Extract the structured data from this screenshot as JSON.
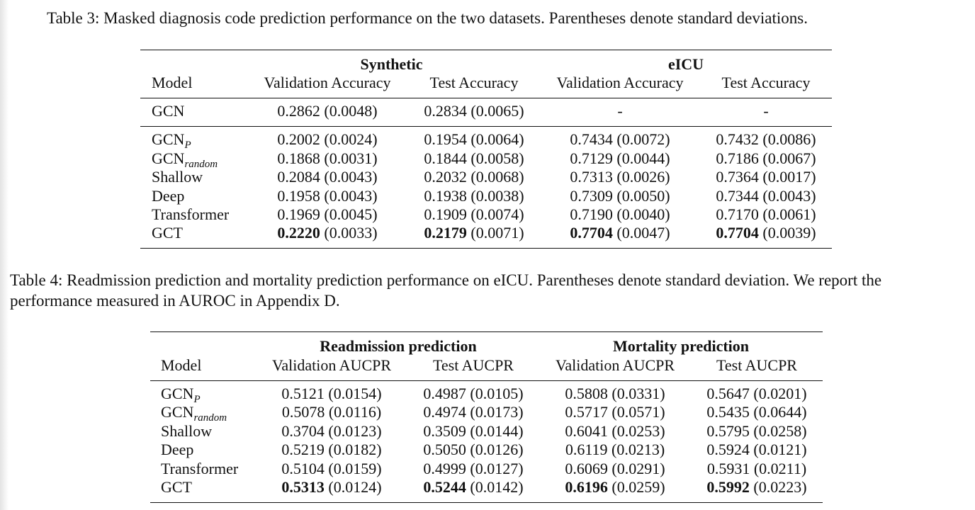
{
  "table3": {
    "caption": "Table 3: Masked diagnosis code prediction performance on the two datasets. Parentheses denote standard deviations.",
    "groups": [
      "Synthetic",
      "eICU"
    ],
    "headers": [
      "Model",
      "Validation Accuracy",
      "Test Accuracy",
      "Validation Accuracy",
      "Test Accuracy"
    ],
    "rows": [
      {
        "model": "GCN",
        "sub": "",
        "values": [
          [
            "",
            "0.2862 (0.0048)"
          ],
          [
            "",
            "0.2834 (0.0065)"
          ],
          [
            "",
            "-"
          ],
          [
            "",
            "-"
          ]
        ]
      },
      {
        "model": "GCN",
        "sub": "P",
        "values": [
          [
            "",
            "0.2002 (0.0024)"
          ],
          [
            "",
            "0.1954 (0.0064)"
          ],
          [
            "",
            "0.7434 (0.0072)"
          ],
          [
            "",
            "0.7432 (0.0086)"
          ]
        ]
      },
      {
        "model": "GCN",
        "sub": "random",
        "values": [
          [
            "",
            "0.1868 (0.0031)"
          ],
          [
            "",
            "0.1844 (0.0058)"
          ],
          [
            "",
            "0.7129 (0.0044)"
          ],
          [
            "",
            "0.7186 (0.0067)"
          ]
        ]
      },
      {
        "model": "Shallow",
        "sub": "",
        "values": [
          [
            "",
            "0.2084 (0.0043)"
          ],
          [
            "",
            "0.2032 (0.0068)"
          ],
          [
            "",
            "0.7313 (0.0026)"
          ],
          [
            "",
            "0.7364 (0.0017)"
          ]
        ]
      },
      {
        "model": "Deep",
        "sub": "",
        "values": [
          [
            "",
            "0.1958 (0.0043)"
          ],
          [
            "",
            "0.1938 (0.0038)"
          ],
          [
            "",
            "0.7309 (0.0050)"
          ],
          [
            "",
            "0.7344 (0.0043)"
          ]
        ]
      },
      {
        "model": "Transformer",
        "sub": "",
        "values": [
          [
            "",
            "0.1969 (0.0045)"
          ],
          [
            "",
            "0.1909 (0.0074)"
          ],
          [
            "",
            "0.7190 (0.0040)"
          ],
          [
            "",
            "0.7170 (0.0061)"
          ]
        ]
      },
      {
        "model": "GCT",
        "sub": "",
        "values": [
          [
            "0.2220",
            " (0.0033)"
          ],
          [
            "0.2179",
            " (0.0071)"
          ],
          [
            "0.7704",
            " (0.0047)"
          ],
          [
            "0.7704",
            " (0.0039)"
          ]
        ]
      }
    ]
  },
  "table4": {
    "caption": "Table 4: Readmission prediction and mortality prediction performance on eICU. Parentheses denote standard deviation. We report the performance measured in AUROC in Appendix D.",
    "groups": [
      "Readmission prediction",
      "Mortality prediction"
    ],
    "headers": [
      "Model",
      "Validation AUCPR",
      "Test AUCPR",
      "Validation AUCPR",
      "Test AUCPR"
    ],
    "rows": [
      {
        "model": "GCN",
        "sub": "P",
        "values": [
          [
            "",
            "0.5121 (0.0154)"
          ],
          [
            "",
            "0.4987 (0.0105)"
          ],
          [
            "",
            "0.5808 (0.0331)"
          ],
          [
            "",
            "0.5647 (0.0201)"
          ]
        ]
      },
      {
        "model": "GCN",
        "sub": "random",
        "values": [
          [
            "",
            "0.5078 (0.0116)"
          ],
          [
            "",
            "0.4974 (0.0173)"
          ],
          [
            "",
            "0.5717 (0.0571)"
          ],
          [
            "",
            "0.5435 (0.0644)"
          ]
        ]
      },
      {
        "model": "Shallow",
        "sub": "",
        "values": [
          [
            "",
            "0.3704 (0.0123)"
          ],
          [
            "",
            "0.3509 (0.0144)"
          ],
          [
            "",
            "0.6041 (0.0253)"
          ],
          [
            "",
            "0.5795 (0.0258)"
          ]
        ]
      },
      {
        "model": "Deep",
        "sub": "",
        "values": [
          [
            "",
            "0.5219 (0.0182)"
          ],
          [
            "",
            "0.5050 (0.0126)"
          ],
          [
            "",
            "0.6119 (0.0213)"
          ],
          [
            "",
            "0.5924 (0.0121)"
          ]
        ]
      },
      {
        "model": "Transformer",
        "sub": "",
        "values": [
          [
            "",
            "0.5104 (0.0159)"
          ],
          [
            "",
            "0.4999 (0.0127)"
          ],
          [
            "",
            "0.6069 (0.0291)"
          ],
          [
            "",
            "0.5931 (0.0211)"
          ]
        ]
      },
      {
        "model": "GCT",
        "sub": "",
        "values": [
          [
            "0.5313",
            " (0.0124)"
          ],
          [
            "0.5244",
            " (0.0142)"
          ],
          [
            "0.6196",
            " (0.0259)"
          ],
          [
            "0.5992",
            " (0.0223)"
          ]
        ]
      }
    ]
  }
}
